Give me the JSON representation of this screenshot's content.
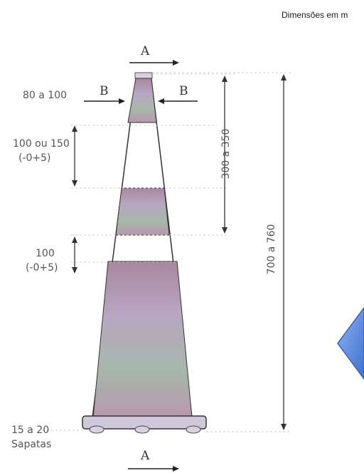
{
  "note": "Dimensões em m",
  "section_marks": {
    "top": "A",
    "bottom": "A",
    "left": "B",
    "right": "B"
  },
  "dimensions": {
    "top_width": "80 a 100",
    "band_1": [
      "100 ou 150",
      "(-0+5)"
    ],
    "band_2": [
      "100",
      "(-0+5)"
    ],
    "upper_height": "300 a 350",
    "total_height": "700 a 760",
    "feet": [
      "15 a 20",
      "Sapatas"
    ]
  },
  "colors": {
    "stripe": "#b9a2c4",
    "stripe_dark": "#8a6a8c",
    "outline": "#333333",
    "arrow_fill": "#5b86d9"
  },
  "icons": {
    "nav": "left-arrow-icon"
  }
}
